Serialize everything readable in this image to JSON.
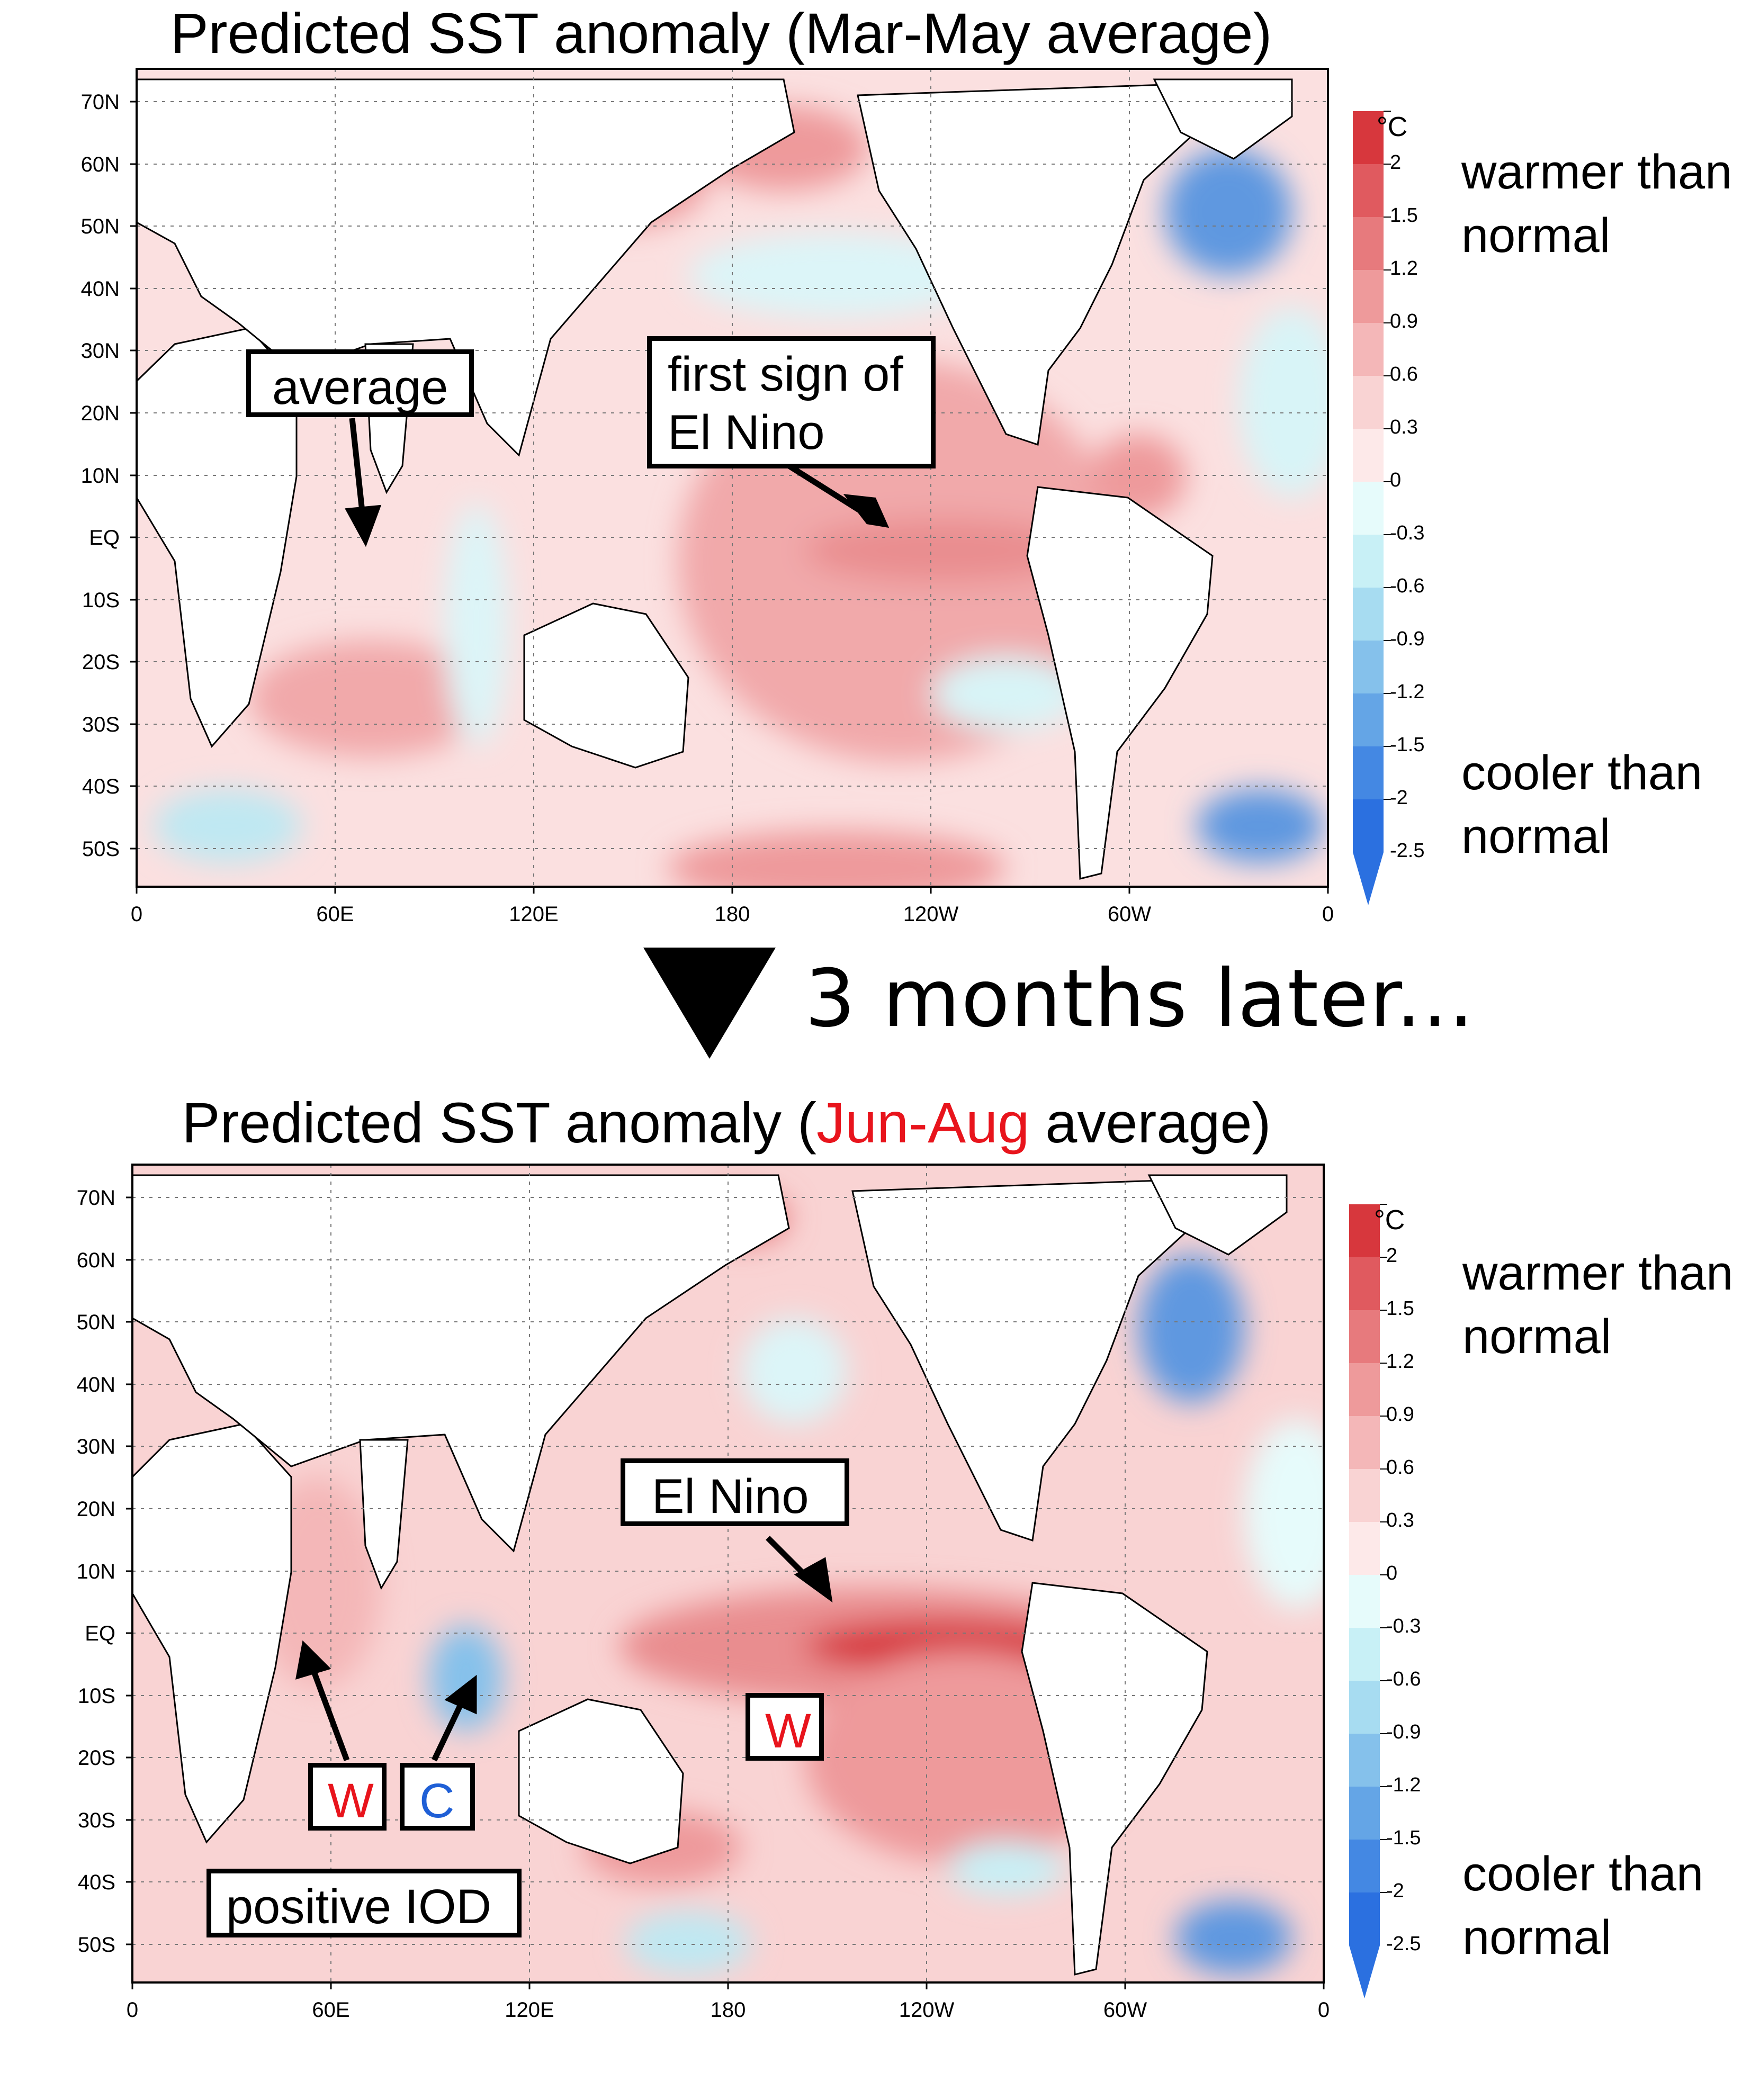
{
  "panels": [
    {
      "title_prefix": "Predicted SST anomaly (",
      "title_period": "Mar-May",
      "title_suffix": " average)",
      "period_color": "#000000",
      "annotations": {
        "average": "average",
        "first_sign_line1": "first sign of",
        "first_sign_line2": "El Nino"
      }
    },
    {
      "title_prefix": "Predicted SST anomaly (",
      "title_period": "Jun-Aug",
      "title_suffix": " average)",
      "period_color": "#e8141c",
      "annotations": {
        "el_nino": "El Nino",
        "w_indian": "W",
        "c_indian": "C",
        "w_pacific": "W",
        "positive_iod": "positive IOD"
      }
    }
  ],
  "transition_text": "3 months later...",
  "lat_labels": [
    "70N",
    "60N",
    "50N",
    "40N",
    "30N",
    "20N",
    "10N",
    "EQ",
    "10S",
    "20S",
    "30S",
    "40S",
    "50S"
  ],
  "lon_labels": [
    "0",
    "60E",
    "120E",
    "180",
    "120W",
    "60W",
    "0"
  ],
  "colorbar": {
    "unit": "°C",
    "ticks": [
      "2",
      "1.5",
      "1.2",
      "0.9",
      "0.6",
      "0.3",
      "0",
      "-0.3",
      "-0.6",
      "-0.9",
      "-1.2",
      "-1.5",
      "-2",
      "-2.5"
    ],
    "colors": [
      "#d7373d",
      "#e05a5f",
      "#e77a7d",
      "#ee9a9b",
      "#f4b7b8",
      "#f9d3d3",
      "#fde9e9",
      "#e6fbfb",
      "#c8f0f6",
      "#a7dcf1",
      "#85c1eb",
      "#64a5e6",
      "#4488e3",
      "#2b70e0"
    ],
    "warm_label_line1": "warmer than",
    "warm_label_line2": "normal",
    "cool_label_line1": "cooler than",
    "cool_label_line2": "normal"
  },
  "colors": {
    "warm_text": "#e8141c",
    "cool_text": "#1f5fd6"
  }
}
